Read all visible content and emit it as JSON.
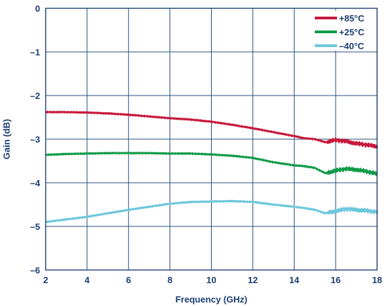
{
  "chart_data": {
    "type": "line",
    "title": "",
    "xlabel": "Frequency (GHz)",
    "ylabel": "Gain (dB)",
    "xlim": [
      2,
      18
    ],
    "ylim": [
      -6,
      0
    ],
    "x_ticks": [
      2,
      4,
      6,
      8,
      10,
      12,
      14,
      16,
      18
    ],
    "y_ticks": [
      0,
      -1,
      -2,
      -3,
      -4,
      -5,
      -6
    ],
    "x_tick_labels": [
      "2",
      "4",
      "6",
      "8",
      "10",
      "12",
      "14",
      "16",
      "18"
    ],
    "y_tick_labels": [
      "0",
      "–1",
      "–2",
      "–3",
      "–4",
      "–5",
      "–6"
    ],
    "grid": true,
    "legend_position": "top-right",
    "series": [
      {
        "name": "+85°C",
        "color": "#c8193c",
        "x": [
          2,
          3,
          4,
          5,
          6,
          7,
          8,
          9,
          10,
          11,
          12,
          13,
          14,
          14.5,
          15,
          15.5,
          16,
          16.5,
          17,
          17.5,
          18
        ],
        "y": [
          -2.38,
          -2.38,
          -2.39,
          -2.41,
          -2.44,
          -2.48,
          -2.52,
          -2.55,
          -2.6,
          -2.67,
          -2.75,
          -2.84,
          -2.93,
          -2.98,
          -3.0,
          -3.07,
          -3.02,
          -3.05,
          -3.1,
          -3.13,
          -3.17
        ]
      },
      {
        "name": "+25°C",
        "color": "#0f9b48",
        "x": [
          2,
          3,
          4,
          5,
          6,
          7,
          8,
          9,
          10,
          11,
          12,
          13,
          14,
          14.5,
          15,
          15.5,
          16,
          16.5,
          17,
          17.5,
          18
        ],
        "y": [
          -3.36,
          -3.34,
          -3.33,
          -3.32,
          -3.32,
          -3.32,
          -3.33,
          -3.33,
          -3.35,
          -3.38,
          -3.43,
          -3.53,
          -3.6,
          -3.62,
          -3.66,
          -3.78,
          -3.72,
          -3.68,
          -3.7,
          -3.74,
          -3.8
        ]
      },
      {
        "name": "–40°C",
        "color": "#6cc7dc",
        "x": [
          2,
          3,
          4,
          5,
          6,
          7,
          8,
          9,
          10,
          11,
          12,
          13,
          14,
          14.5,
          15,
          15.5,
          16,
          16.5,
          17,
          17.5,
          18
        ],
        "y": [
          -4.9,
          -4.84,
          -4.78,
          -4.7,
          -4.62,
          -4.55,
          -4.48,
          -4.44,
          -4.43,
          -4.42,
          -4.44,
          -4.5,
          -4.55,
          -4.58,
          -4.62,
          -4.7,
          -4.65,
          -4.6,
          -4.62,
          -4.64,
          -4.67
        ]
      }
    ]
  }
}
